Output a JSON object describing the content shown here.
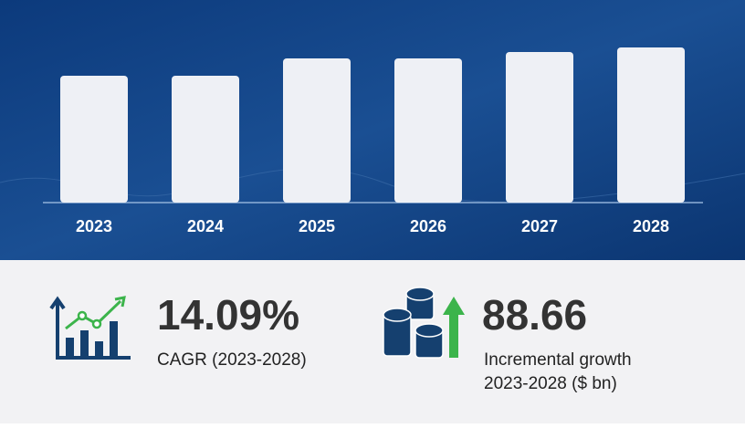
{
  "chart_data": {
    "type": "bar",
    "categories": [
      "2023",
      "2024",
      "2025",
      "2026",
      "2027",
      "2028"
    ],
    "values": [
      139,
      139,
      158,
      158,
      165,
      170
    ],
    "color": "#eef0f5"
  },
  "summary": {
    "cagr": {
      "value": "14.09%",
      "label": "CAGR (2023-2028)"
    },
    "growth": {
      "value": "88.66",
      "label": [
        "Incremental growth",
        "2023-2028 ($ bn)"
      ]
    }
  }
}
